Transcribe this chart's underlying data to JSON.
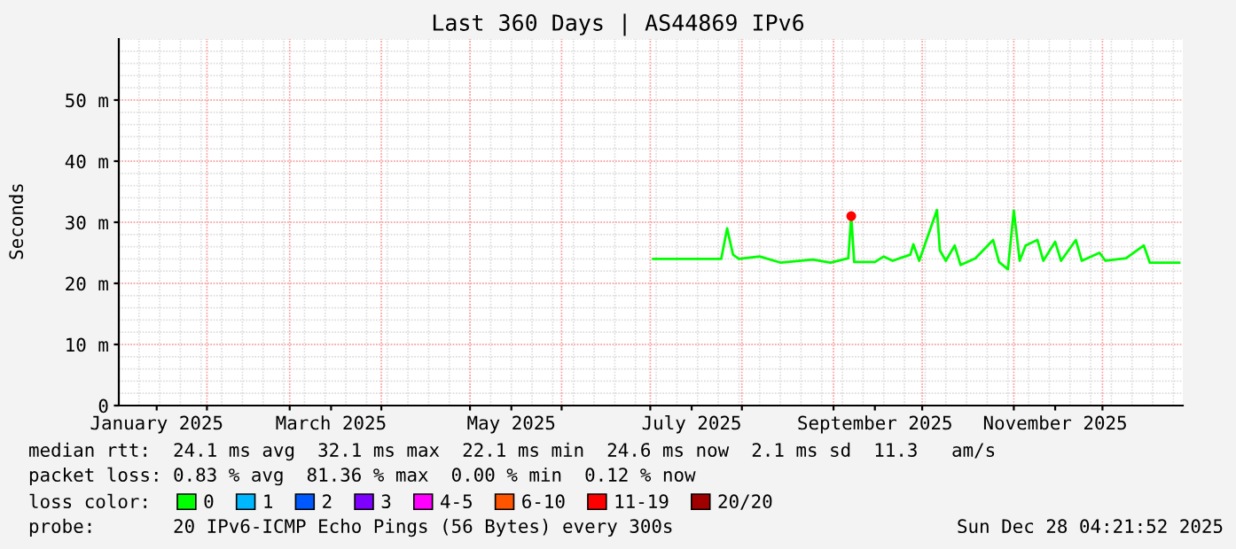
{
  "chart_data": {
    "type": "line",
    "title": "Last 360 Days | AS44869 IPv6",
    "ylabel": "Seconds",
    "xlim": [
      "2025-01-02T04:21",
      "2025-12-28T04:21"
    ],
    "xticks": [
      {
        "value": "2025-01-15",
        "label": "January 2025"
      },
      {
        "value": "2025-02-01",
        "label": null
      },
      {
        "value": "2025-03-01",
        "label": null
      },
      {
        "value": "2025-03-15",
        "label": "March 2025"
      },
      {
        "value": "2025-04-01",
        "label": null
      },
      {
        "value": "2025-05-01",
        "label": null
      },
      {
        "value": "2025-05-15",
        "label": "May 2025"
      },
      {
        "value": "2025-06-01",
        "label": null
      },
      {
        "value": "2025-07-01",
        "label": null
      },
      {
        "value": "2025-07-15",
        "label": "July 2025"
      },
      {
        "value": "2025-08-01",
        "label": null
      },
      {
        "value": "2025-09-01",
        "label": null
      },
      {
        "value": "2025-09-15",
        "label": "September 2025"
      },
      {
        "value": "2025-10-01",
        "label": null
      },
      {
        "value": "2025-11-01",
        "label": null
      },
      {
        "value": "2025-11-15",
        "label": "November 2025"
      },
      {
        "value": "2025-12-01",
        "label": null
      }
    ],
    "ylim": [
      0,
      60
    ],
    "yticks": [
      0,
      {
        "value": 10,
        "label": "10 m"
      },
      {
        "value": 20,
        "label": "20 m"
      },
      {
        "value": 30,
        "label": "30 m"
      },
      {
        "value": 40,
        "label": "40 m"
      },
      {
        "value": 50,
        "label": "50 m"
      }
    ],
    "grid": true,
    "legend": "bottom",
    "legend_title": "loss color:",
    "series": [
      {
        "name": "0",
        "color": "#00ff00",
        "x": [
          "2025-07-02",
          "2025-07-25",
          "2025-07-27",
          "2025-07-29",
          "2025-07-31",
          "2025-08-07",
          "2025-08-14",
          "2025-08-25",
          "2025-08-31",
          "2025-09-06",
          "2025-09-07",
          "2025-09-08",
          "2025-09-15",
          "2025-09-18",
          "2025-09-21",
          "2025-09-27",
          "2025-09-28",
          "2025-09-30",
          "2025-10-06",
          "2025-10-07",
          "2025-10-09",
          "2025-10-12",
          "2025-10-14",
          "2025-10-19",
          "2025-10-25",
          "2025-10-27",
          "2025-10-30",
          "2025-11-01",
          "2025-11-03",
          "2025-11-05",
          "2025-11-09",
          "2025-11-11",
          "2025-11-15",
          "2025-11-17",
          "2025-11-22",
          "2025-11-24",
          "2025-11-30",
          "2025-12-02",
          "2025-12-09",
          "2025-12-15",
          "2025-12-17",
          "2025-12-27"
        ],
        "values": [
          24.0,
          24.0,
          29.0,
          24.7,
          24.0,
          24.4,
          23.4,
          23.9,
          23.4,
          24.1,
          31.0,
          23.5,
          23.5,
          24.4,
          23.7,
          24.7,
          26.4,
          23.7,
          32.0,
          25.4,
          23.7,
          26.2,
          23.0,
          24.1,
          27.1,
          23.5,
          22.3,
          31.9,
          23.7,
          26.2,
          27.1,
          23.7,
          26.8,
          23.7,
          27.1,
          23.7,
          25.0,
          23.7,
          24.1,
          26.2,
          23.4,
          23.4
        ]
      },
      {
        "name": "1",
        "color": "#00b8ff"
      },
      {
        "name": "2",
        "color": "#0059ff"
      },
      {
        "name": "3",
        "color": "#7e00ff"
      },
      {
        "name": "4-5",
        "color": "#ff00ff"
      },
      {
        "name": "6-10",
        "color": "#ff5500"
      },
      {
        "name": "11-19",
        "color": "#ff0000",
        "marker": "circle",
        "x": [
          "2025-09-07"
        ],
        "values": [
          31.0
        ]
      },
      {
        "name": "20/20",
        "color": "#a10000"
      }
    ],
    "annotations": [
      "median rtt:  24.1 ms avg  32.1 ms max  22.1 ms min  24.6 ms now  2.1 ms sd  11.3   am/s",
      "packet loss: 0.83 % avg  81.36 % max  0.00 % min  0.12 % now",
      "probe:       20 IPv6-ICMP Echo Pings (56 Bytes) every 300s",
      "Sun Dec 28 04:21:52 2025"
    ]
  }
}
